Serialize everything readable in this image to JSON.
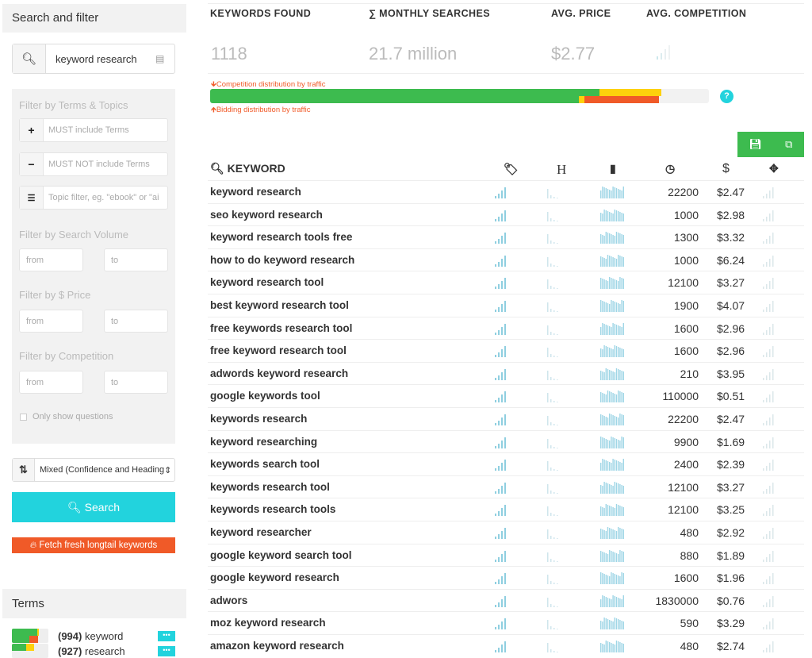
{
  "sidebar": {
    "title": "Search and filter",
    "search_value": "keyword research",
    "filters": {
      "terms_label": "Filter by Terms & Topics",
      "must_placeholder": "MUST include Terms",
      "must_not_placeholder": "MUST NOT include Terms",
      "topic_placeholder": "Topic filter, eg. \"ebook\" or \"ai",
      "volume_label": "Filter by Search Volume",
      "price_label": "Filter by $ Price",
      "competition_label": "Filter by Competition",
      "from": "from",
      "to": "to",
      "questions_label": "Only show questions"
    },
    "sort_value": "Mixed (Confidence and Heading",
    "search_button": "Search",
    "fetch_button": "Fetch fresh longtail keywords",
    "terms_title": "Terms",
    "terms": [
      {
        "count": "(994)",
        "term": "keyword"
      },
      {
        "count": "(927)",
        "term": "research"
      }
    ]
  },
  "stats": {
    "keywords_found_label": "KEYWORDS FOUND",
    "keywords_found": "1118",
    "monthly_label": "∑ MONTHLY SEARCHES",
    "monthly": "21.7 million",
    "price_label": "AVG. PRICE",
    "price": "$2.77",
    "competition_label": "AVG. COMPETITION"
  },
  "distribution": {
    "competition_label": "Competition distribution by traffic",
    "bidding_label": "Bidding distribution by traffic",
    "competition": {
      "green": 78,
      "yellow": 12.5
    },
    "bidding": {
      "green": 74,
      "yellow": 1,
      "red": 15
    }
  },
  "colors": {
    "accent": "#22d3dd",
    "green": "#3dbb4f",
    "yellow": "#fdd10c",
    "orange": "#f05a28"
  },
  "table": {
    "keyword_header": "KEYWORD",
    "headers_icons": [
      "tag-icon",
      "heading-icon",
      "bar-chart-icon",
      "gauge-icon",
      "dollar-icon",
      "crosshair-icon"
    ],
    "h_label": "H",
    "dollar_label": "$",
    "rows": [
      {
        "keyword": "keyword research",
        "volume": "22200",
        "price": "$2.47"
      },
      {
        "keyword": "seo keyword research",
        "volume": "1000",
        "price": "$2.98"
      },
      {
        "keyword": "keyword research tools free",
        "volume": "1300",
        "price": "$3.32"
      },
      {
        "keyword": "how to do keyword research",
        "volume": "1000",
        "price": "$6.24"
      },
      {
        "keyword": "keyword research tool",
        "volume": "12100",
        "price": "$3.27"
      },
      {
        "keyword": "best keyword research tool",
        "volume": "1900",
        "price": "$4.07"
      },
      {
        "keyword": "free keywords research tool",
        "volume": "1600",
        "price": "$2.96"
      },
      {
        "keyword": "free keyword research tool",
        "volume": "1600",
        "price": "$2.96"
      },
      {
        "keyword": "adwords keyword research",
        "volume": "210",
        "price": "$3.95"
      },
      {
        "keyword": "google keywords tool",
        "volume": "110000",
        "price": "$0.51"
      },
      {
        "keyword": "keywords research",
        "volume": "22200",
        "price": "$2.47"
      },
      {
        "keyword": "keyword researching",
        "volume": "9900",
        "price": "$1.69"
      },
      {
        "keyword": "keywords search tool",
        "volume": "2400",
        "price": "$2.39"
      },
      {
        "keyword": "keywords research tool",
        "volume": "12100",
        "price": "$3.27"
      },
      {
        "keyword": "keywords research tools",
        "volume": "12100",
        "price": "$3.25"
      },
      {
        "keyword": "keyword researcher",
        "volume": "480",
        "price": "$2.92"
      },
      {
        "keyword": "google keyword search tool",
        "volume": "880",
        "price": "$1.89"
      },
      {
        "keyword": "google keyword research",
        "volume": "1600",
        "price": "$1.96"
      },
      {
        "keyword": "adwors",
        "volume": "1830000",
        "price": "$0.76"
      },
      {
        "keyword": "moz keyword research",
        "volume": "590",
        "price": "$3.29"
      },
      {
        "keyword": "amazon keyword research",
        "volume": "480",
        "price": "$2.74"
      }
    ]
  }
}
